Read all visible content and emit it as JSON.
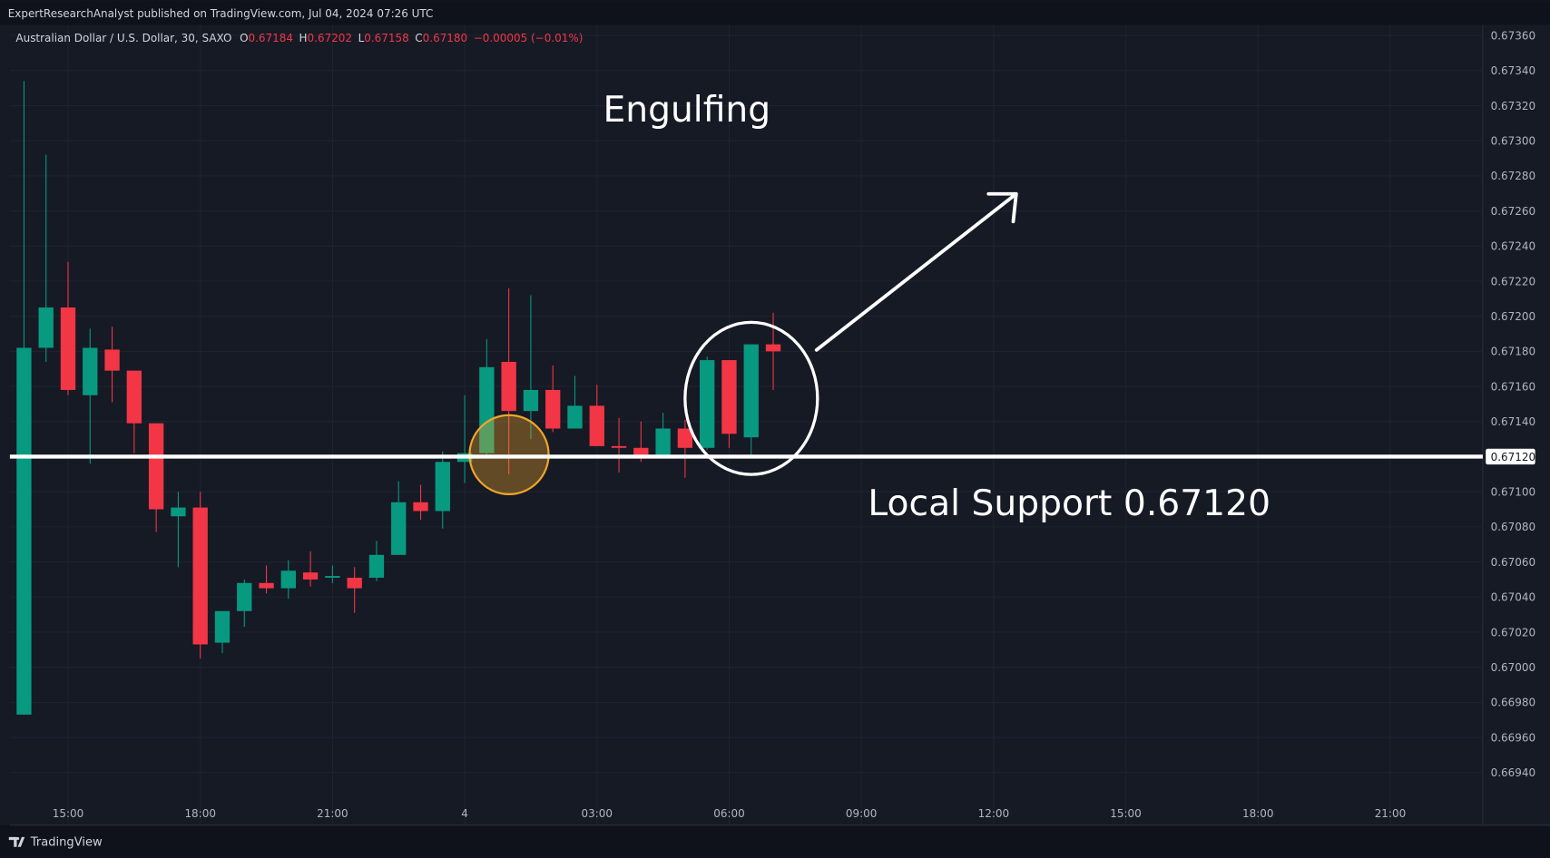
{
  "chart_data": {
    "type": "candlestick",
    "attribution": "ExpertResearchAnalyst published on TradingView.com, Jul 04, 2024 07:26 UTC",
    "symbol": "Australian Dollar / U.S. Dollar, 30, SAXO",
    "ohlc_legend": [
      {
        "label": "O",
        "value": 0.67184
      },
      {
        "label": "H",
        "value": 0.67202
      },
      {
        "label": "L",
        "value": 0.67158
      },
      {
        "label": "C",
        "value": 0.6718
      }
    ],
    "ohlc_value_labels": [
      "0.67184",
      "0.67202",
      "0.67158",
      "0.67180"
    ],
    "change": "−0.00005 (−0.01%)",
    "annotations": {
      "pattern": "Engulfing",
      "support": "Local Support 0.67120"
    },
    "support_level": {
      "value": 0.6712,
      "label": "0.67120"
    },
    "footer": "TradingView",
    "up_color": "#089981",
    "down_color": "#f23645",
    "grid": true,
    "xlim": [
      13.68,
      47.1
    ],
    "ylim": [
      0.6691,
      0.67366
    ],
    "xticks": [
      {
        "value": 15,
        "label": "15:00"
      },
      {
        "value": 18,
        "label": "18:00"
      },
      {
        "value": 21,
        "label": "21:00"
      },
      {
        "value": 24,
        "label": "4"
      },
      {
        "value": 27,
        "label": "03:00"
      },
      {
        "value": 30,
        "label": "06:00"
      },
      {
        "value": 33,
        "label": "09:00"
      },
      {
        "value": 36,
        "label": "12:00"
      },
      {
        "value": 39,
        "label": "15:00"
      },
      {
        "value": 42,
        "label": "18:00"
      },
      {
        "value": 45,
        "label": "21:00"
      }
    ],
    "yticks": [
      {
        "value": 0.6736,
        "label": "0.67360"
      },
      {
        "value": 0.6734,
        "label": "0.67340"
      },
      {
        "value": 0.6732,
        "label": "0.67320"
      },
      {
        "value": 0.673,
        "label": "0.67300"
      },
      {
        "value": 0.6728,
        "label": "0.67280"
      },
      {
        "value": 0.6726,
        "label": "0.67260"
      },
      {
        "value": 0.6724,
        "label": "0.67240"
      },
      {
        "value": 0.6722,
        "label": "0.67220"
      },
      {
        "value": 0.672,
        "label": "0.67200"
      },
      {
        "value": 0.6718,
        "label": "0.67180"
      },
      {
        "value": 0.6716,
        "label": "0.67160"
      },
      {
        "value": 0.6714,
        "label": "0.67140"
      },
      {
        "value": 0.671,
        "label": "0.67100"
      },
      {
        "value": 0.6708,
        "label": "0.67080"
      },
      {
        "value": 0.6706,
        "label": "0.67060"
      },
      {
        "value": 0.6704,
        "label": "0.67040"
      },
      {
        "value": 0.6702,
        "label": "0.67020"
      },
      {
        "value": 0.67,
        "label": "0.67000"
      },
      {
        "value": 0.6698,
        "label": "0.66980"
      },
      {
        "value": 0.6696,
        "label": "0.66960"
      },
      {
        "value": 0.6694,
        "label": "0.66940"
      }
    ],
    "x": [
      14,
      14.5,
      15,
      15.5,
      16,
      16.5,
      17,
      17.5,
      18,
      18.5,
      19,
      19.5,
      20,
      20.5,
      21,
      21.5,
      22,
      22.5,
      23,
      23.5,
      24,
      24.5,
      25,
      25.5,
      26,
      26.5,
      27,
      27.5,
      28,
      28.5,
      29,
      29.5,
      30,
      30.5,
      31
    ],
    "open": [
      0.66973,
      0.67182,
      0.67205,
      0.67155,
      0.67181,
      0.67169,
      0.67139,
      0.67086,
      0.67091,
      0.67014,
      0.67032,
      0.67048,
      0.67045,
      0.67054,
      0.67051,
      0.67051,
      0.67051,
      0.67064,
      0.67094,
      0.67089,
      0.67117,
      0.67122,
      0.67174,
      0.67146,
      0.67158,
      0.67136,
      0.67149,
      0.67126,
      0.67125,
      0.67119,
      0.67136,
      0.67125,
      0.67175,
      0.67131,
      0.67184
    ],
    "high": [
      0.67334,
      0.67292,
      0.67231,
      0.67193,
      0.67194,
      0.67169,
      0.67139,
      0.671,
      0.671,
      0.67032,
      0.6705,
      0.67058,
      0.67061,
      0.67066,
      0.67058,
      0.67057,
      0.67072,
      0.67106,
      0.67104,
      0.67123,
      0.67155,
      0.67187,
      0.67216,
      0.67212,
      0.67172,
      0.67166,
      0.67161,
      0.67142,
      0.6714,
      0.67145,
      0.67141,
      0.67177,
      0.67175,
      0.67184,
      0.67202
    ],
    "low": [
      0.66973,
      0.67174,
      0.67155,
      0.67116,
      0.67151,
      0.67122,
      0.67077,
      0.67057,
      0.67005,
      0.67008,
      0.67023,
      0.67042,
      0.67039,
      0.67046,
      0.67048,
      0.67031,
      0.67049,
      0.67064,
      0.67084,
      0.67079,
      0.67105,
      0.67121,
      0.6711,
      0.6713,
      0.67134,
      0.67136,
      0.67126,
      0.67111,
      0.67117,
      0.67119,
      0.67108,
      0.67124,
      0.67125,
      0.6712,
      0.67158
    ],
    "close": [
      0.67182,
      0.67205,
      0.67158,
      0.67182,
      0.67169,
      0.67139,
      0.6709,
      0.67091,
      0.67013,
      0.67032,
      0.67048,
      0.67045,
      0.67055,
      0.6705,
      0.67052,
      0.67045,
      0.67064,
      0.67094,
      0.67089,
      0.67117,
      0.67122,
      0.67171,
      0.67146,
      0.67158,
      0.67136,
      0.67149,
      0.67126,
      0.67125,
      0.67119,
      0.67136,
      0.67125,
      0.67175,
      0.67133,
      0.67184,
      0.6718
    ]
  }
}
